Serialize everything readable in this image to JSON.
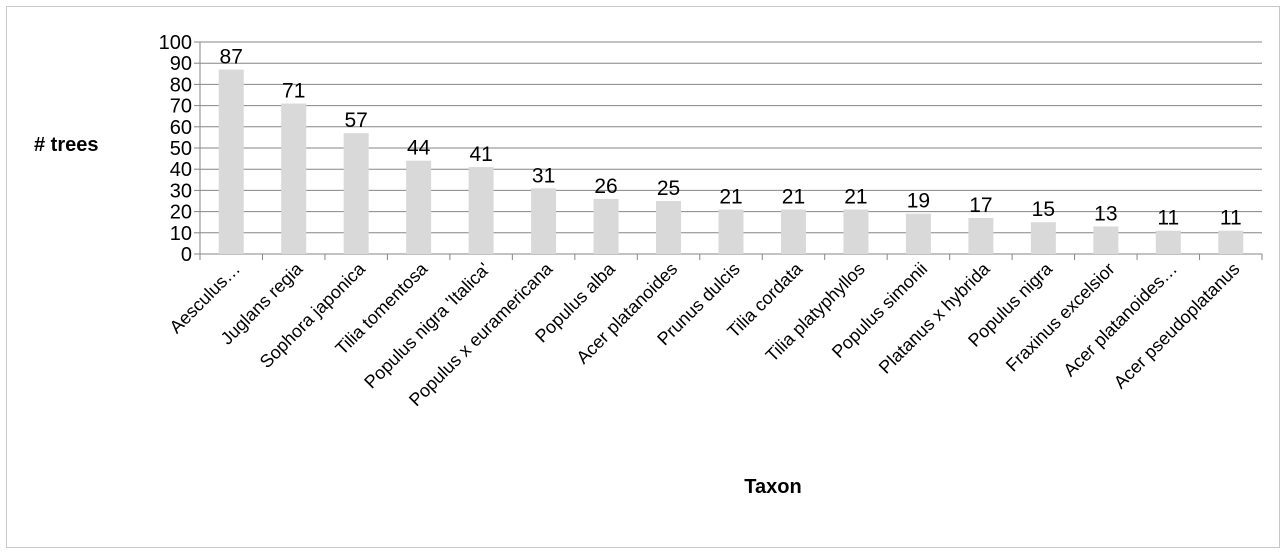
{
  "chart_data": {
    "type": "bar",
    "title": "",
    "xlabel": "Taxon",
    "ylabel": "# trees",
    "ylim": [
      0,
      100
    ],
    "yticks": [
      0,
      10,
      20,
      30,
      40,
      50,
      60,
      70,
      80,
      90,
      100
    ],
    "grid": true,
    "legend": "none",
    "bar_color": "#d9d9d9",
    "grid_color": "#868686",
    "categories": [
      "Aesculus…",
      "Juglans regia",
      "Sophora japonica",
      "Tilia tomentosa",
      "Populus nigra 'Italica'",
      "Populus x euramericana",
      "Populus alba",
      "Acer platanoides",
      "Prunus dulcis",
      "Tilia cordata",
      "Tilia platyphyllos",
      "Populus simonii",
      "Platanus x hybrida",
      "Populus nigra",
      "Fraxinus excelsior",
      "Acer platanoides…",
      "Acer pseudoplatanus"
    ],
    "values": [
      87,
      71,
      57,
      44,
      41,
      31,
      26,
      25,
      21,
      21,
      21,
      19,
      17,
      15,
      13,
      11,
      11
    ]
  }
}
